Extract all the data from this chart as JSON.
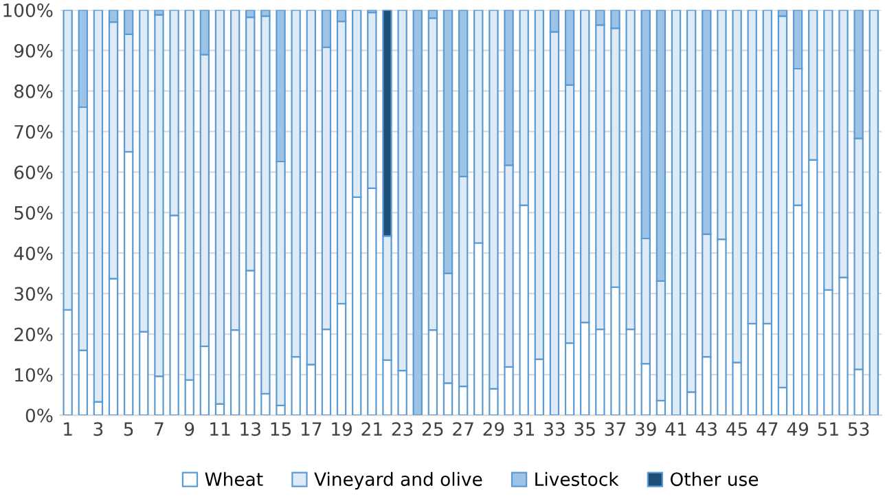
{
  "chart_data": {
    "type": "bar",
    "stacked": true,
    "categories": [
      "1",
      null,
      "3",
      null,
      "5",
      null,
      "7",
      null,
      "9",
      null,
      "11",
      null,
      "13",
      null,
      "15",
      null,
      "17",
      null,
      "19",
      null,
      "21",
      null,
      "23",
      null,
      "25",
      null,
      "27",
      null,
      "29",
      null,
      "31",
      null,
      "33",
      null,
      "35",
      null,
      "37",
      null,
      "39",
      null,
      "41",
      null,
      "43",
      null,
      "45",
      null,
      "47",
      null,
      "49",
      null,
      "51",
      null,
      "53",
      null
    ],
    "series": [
      {
        "name": "Wheat",
        "color": "#ffffff",
        "values": [
          26,
          16,
          3.3,
          33.7,
          65,
          20.6,
          9.6,
          49.3,
          8.7,
          17,
          2.8,
          21,
          35.7,
          5.3,
          2.4,
          14.4,
          12.5,
          21.2,
          27.5,
          53.8,
          56,
          13.6,
          11,
          0,
          21,
          7.9,
          7.1,
          42.5,
          6.5,
          11.9,
          51.8,
          13.8,
          0,
          17.8,
          22.9,
          21.2,
          31.6,
          21.2,
          12.7,
          3.6,
          0,
          5.7,
          14.4,
          43.4,
          13,
          22.6,
          22.6,
          6.8,
          51.8,
          63,
          30.9,
          34,
          11.3,
          0
        ]
      },
      {
        "name": "Vineyard and olive",
        "color": "#deebf7",
        "values": [
          74,
          60,
          96.7,
          63.3,
          29,
          79.4,
          89.2,
          50.7,
          91.3,
          72,
          97.2,
          79,
          62.5,
          93.2,
          60.2,
          85.6,
          87.5,
          69.6,
          69.7,
          46.2,
          43.4,
          30.6,
          89,
          0,
          77,
          27.1,
          51.8,
          57.5,
          93.5,
          49.8,
          48.2,
          86.2,
          94.6,
          63.7,
          77.1,
          75.1,
          63.9,
          78.8,
          30.9,
          29.5,
          100,
          94.3,
          30.3,
          56.6,
          87,
          77.4,
          77.4,
          91.7,
          33.7,
          37,
          69.1,
          66,
          57,
          100
        ]
      },
      {
        "name": "Livestock",
        "color": "#9dc3e6",
        "values": [
          0,
          24,
          0,
          3,
          6,
          0,
          1.2,
          0,
          0,
          11,
          0,
          0,
          1.8,
          1.5,
          37.4,
          0,
          0,
          9.2,
          2.8,
          0,
          0.6,
          0,
          0,
          100,
          2,
          65,
          41.1,
          0,
          0,
          38.3,
          0,
          0,
          5.4,
          18.5,
          0,
          3.7,
          4.5,
          0,
          56.4,
          66.9,
          0,
          0,
          55.3,
          0,
          0,
          0,
          0,
          1.5,
          14.5,
          0,
          0,
          0,
          31.7,
          0
        ]
      },
      {
        "name": "Other use",
        "color": "#1f4e79",
        "values": [
          0,
          0,
          0,
          0,
          0,
          0,
          0,
          0,
          0,
          0,
          0,
          0,
          0,
          0,
          0,
          0,
          0,
          0,
          0,
          0,
          0,
          55.8,
          0,
          0,
          0,
          0,
          0,
          0,
          0,
          0,
          0,
          0,
          0,
          0,
          0,
          0,
          0,
          0,
          0,
          0,
          0,
          0,
          0,
          0,
          0,
          0,
          0,
          0,
          0,
          0,
          0,
          0,
          0,
          0
        ]
      }
    ],
    "ylim": [
      0,
      100
    ],
    "yticks": [
      {
        "value": 0,
        "label": "0%"
      },
      {
        "value": 10,
        "label": "10%"
      },
      {
        "value": 20,
        "label": "20%"
      },
      {
        "value": 30,
        "label": "30%"
      },
      {
        "value": 40,
        "label": "40%"
      },
      {
        "value": 50,
        "label": "50%"
      },
      {
        "value": 60,
        "label": "60%"
      },
      {
        "value": 70,
        "label": "70%"
      },
      {
        "value": 80,
        "label": "80%"
      },
      {
        "value": 90,
        "label": "90%"
      },
      {
        "value": 100,
        "label": "100%"
      }
    ],
    "grid": "y",
    "legend": "bottom"
  }
}
